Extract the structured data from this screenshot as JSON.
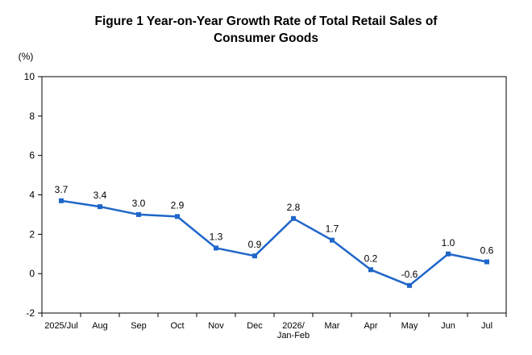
{
  "chart_data": {
    "type": "line",
    "title_lines": [
      "Figure 1 Year-on-Year Growth Rate of Total Retail Sales of",
      "Consumer Goods"
    ],
    "ylabel": "(%)",
    "xlabel": "",
    "ylim": [
      -2,
      10
    ],
    "yticks": [
      "-2",
      "0",
      "2",
      "4",
      "6",
      "8",
      "10"
    ],
    "grid": false,
    "legend": "none",
    "categories": [
      [
        "2025/Jul"
      ],
      [
        "Aug"
      ],
      [
        "Sep"
      ],
      [
        "Oct"
      ],
      [
        "Nov"
      ],
      [
        "Dec"
      ],
      [
        "2026/",
        "Jan-Feb"
      ],
      [
        "Mar"
      ],
      [
        "Apr"
      ],
      [
        "May"
      ],
      [
        "Jun"
      ],
      [
        "Jul"
      ]
    ],
    "series": [
      {
        "values": [
          3.7,
          3.4,
          3.0,
          2.9,
          1.3,
          0.9,
          2.8,
          1.7,
          0.2,
          -0.6,
          1.0,
          0.6
        ],
        "labels": [
          "3.7",
          "3.4",
          "3.0",
          "2.9",
          "1.3",
          "0.9",
          "2.8",
          "1.7",
          "0.2",
          "-0.6",
          "1.0",
          "0.6"
        ],
        "color": "#1f66c9"
      }
    ],
    "axis_color": "#000000"
  }
}
